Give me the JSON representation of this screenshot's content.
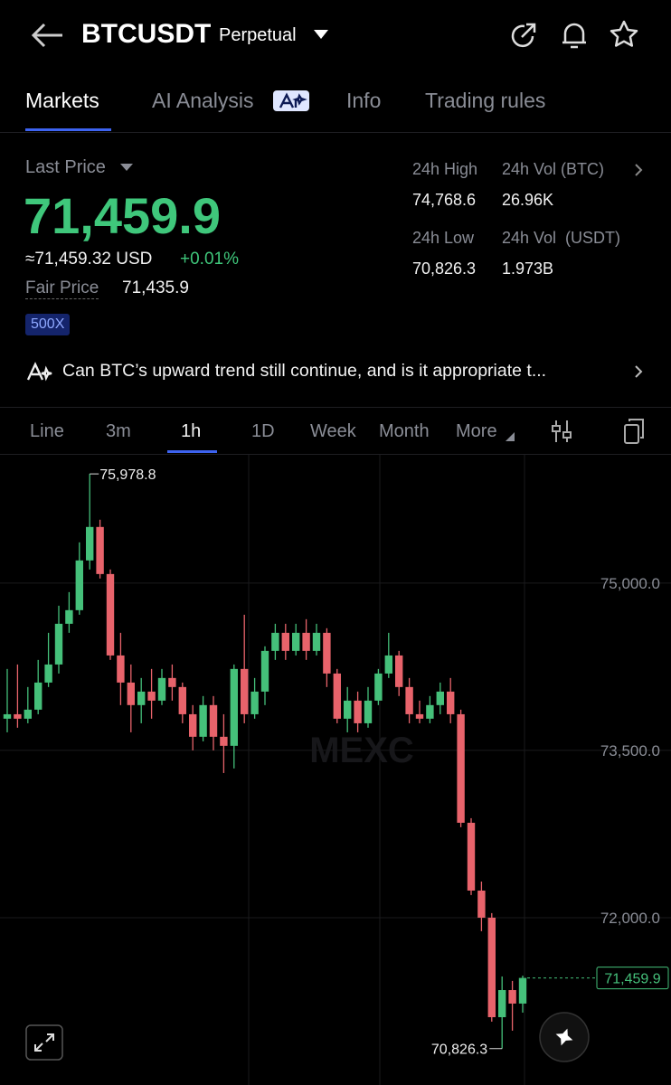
{
  "header": {
    "symbol": "BTCUSDT",
    "contract": "Perpetual"
  },
  "tabs": [
    "Markets",
    "AI Analysis",
    "Info",
    "Trading rules"
  ],
  "price": {
    "label": "Last Price",
    "last": "71,459.9",
    "usd": "≈71,459.32 USD",
    "change": "+0.01%",
    "fair_label": "Fair Price",
    "fair": "71,435.9",
    "leverage": "500X"
  },
  "stats": [
    {
      "label": "24h High",
      "value": "74,768.6"
    },
    {
      "label": "24h Vol (BTC)",
      "value": "26.96K"
    },
    {
      "label": "24h Low",
      "value": "70,826.3"
    },
    {
      "label": "24h Vol  (USDT)",
      "value": "1.973B"
    }
  ],
  "banner": "Can BTC’s upward trend still continue, and is it appropriate t...",
  "intervals": [
    "Line",
    "3m",
    "1h",
    "1D",
    "Week",
    "Month",
    "More"
  ],
  "watermark": "MEXC",
  "chart_data": {
    "type": "candlestick",
    "open": [
      73784,
      73824,
      73784,
      73865,
      74108,
      74270,
      74635,
      74757,
      75203,
      75503,
      75081,
      74351,
      74108,
      73906,
      74027,
      73946,
      74149,
      74068,
      73824,
      73622,
      73906,
      73622,
      73541,
      74230,
      73824,
      74027,
      74392,
      74554,
      74392,
      74554,
      74392,
      74554,
      74189,
      73784,
      73946,
      73743,
      73946,
      74189,
      74351,
      74068,
      73824,
      73784,
      73906,
      74027,
      73824,
      72851,
      72243,
      72000,
      71108,
      71351,
      71230
    ],
    "high": [
      74230,
      74270,
      74068,
      74311,
      74554,
      74797,
      74919,
      75365,
      75978.8,
      75568,
      75122,
      74554,
      74270,
      74149,
      74230,
      74230,
      74270,
      74108,
      73906,
      73987,
      73987,
      73824,
      74270,
      74716,
      74149,
      74433,
      74635,
      74635,
      74635,
      74676,
      74635,
      74595,
      74230,
      74068,
      74027,
      74068,
      74230,
      74554,
      74392,
      74149,
      73946,
      73987,
      74108,
      74149,
      73865,
      72892,
      72324,
      72041,
      71473,
      71433,
      71480
    ],
    "low": [
      73662,
      73703,
      73743,
      73824,
      74068,
      74189,
      74554,
      74716,
      75122,
      75041,
      74311,
      73906,
      73662,
      73743,
      73784,
      73906,
      73946,
      73743,
      73500,
      73581,
      73500,
      73297,
      73338,
      73743,
      73784,
      73906,
      74311,
      74311,
      74351,
      74311,
      74351,
      74068,
      73743,
      73662,
      73662,
      73703,
      73906,
      74149,
      73987,
      73743,
      73743,
      73743,
      73824,
      73743,
      72811,
      72203,
      71879,
      71068,
      70826.3,
      70987,
      71149
    ],
    "close": [
      73824,
      73784,
      73865,
      74108,
      74270,
      74635,
      74757,
      75203,
      75503,
      75081,
      74351,
      74108,
      73906,
      74027,
      73946,
      74149,
      74068,
      73824,
      73622,
      73906,
      73622,
      73541,
      74230,
      73824,
      74027,
      74392,
      74554,
      74392,
      74554,
      74392,
      74554,
      74189,
      73784,
      73946,
      73743,
      73946,
      74189,
      74351,
      74068,
      73824,
      73784,
      73906,
      74027,
      73824,
      72851,
      72243,
      72000,
      71108,
      71351,
      71230,
      71459.9
    ],
    "up_color": "#45c07a",
    "down_color": "#e8636b",
    "ylim": [
      70500,
      76150
    ],
    "yticks": [
      {
        "value": 75000,
        "label": "75,000.0"
      },
      {
        "value": 73500,
        "label": "73,500.0"
      },
      {
        "value": 72000,
        "label": "72,000.0"
      }
    ],
    "grid": true,
    "annotations": {
      "high": "75,978.8",
      "low": "70,826.3",
      "last": "71,459.9"
    }
  }
}
